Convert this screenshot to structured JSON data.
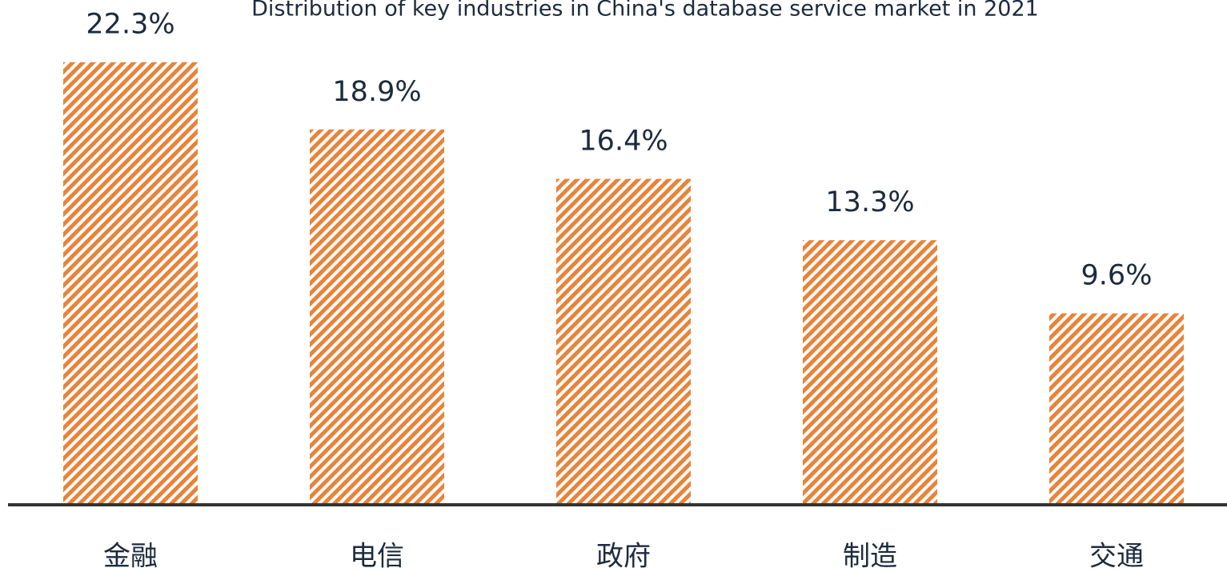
{
  "chart_data": {
    "type": "bar",
    "title": "Distribution of key industries in China's database service market in 2021",
    "categories": [
      "金融",
      "电信",
      "政府",
      "制造",
      "交通"
    ],
    "values": [
      22.3,
      18.9,
      16.4,
      13.3,
      9.6
    ],
    "value_labels": [
      "22.3%",
      "18.9%",
      "16.4%",
      "13.3%",
      "9.6%"
    ],
    "color": "#e8833a",
    "ylim": [
      0,
      25
    ]
  }
}
